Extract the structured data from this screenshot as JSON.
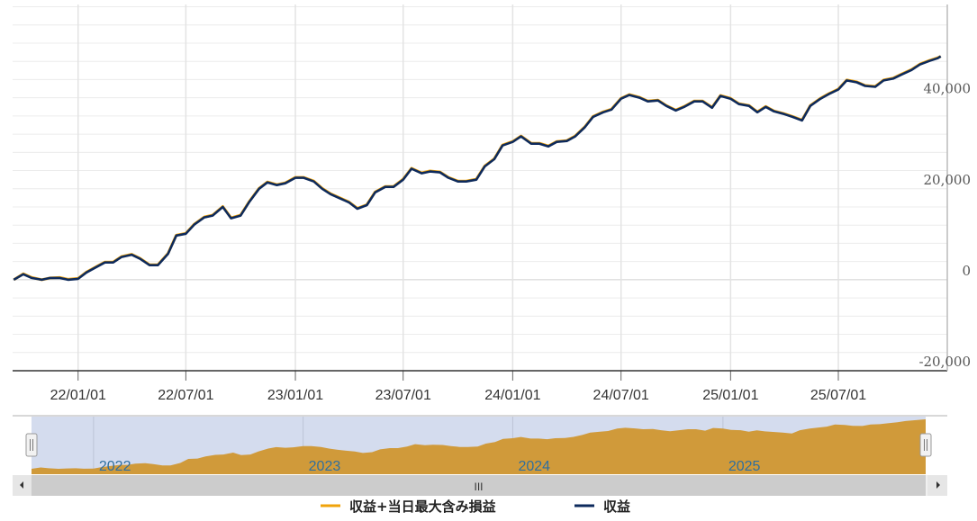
{
  "chart_data": {
    "type": "line",
    "title": "",
    "xlabel": "",
    "ylabel": "",
    "y_axis_position": "right",
    "ylim": [
      -20000,
      60500
    ],
    "y_ticks": [
      -20000,
      0,
      20000,
      40000
    ],
    "y_tick_labels": [
      "-20,000",
      "0",
      "20,000",
      "40,000"
    ],
    "x_ticks": [
      "2022-01-01",
      "2022-07-01",
      "2023-01-01",
      "2023-07-01",
      "2024-01-01",
      "2024-07-01",
      "2025-01-01",
      "2025-07-01"
    ],
    "x_tick_labels": [
      "22/01/01",
      "22/07/01",
      "23/01/01",
      "23/07/01",
      "24/01/01",
      "24/07/01",
      "25/01/01",
      "25/07/01"
    ],
    "xlim": [
      "2021-09-13",
      "2025-12-31"
    ],
    "grid": true,
    "legend_position": "bottom",
    "x": [
      "2021-09-15",
      "2021-10-01",
      "2021-10-15",
      "2021-11-01",
      "2021-11-15",
      "2021-12-01",
      "2021-12-15",
      "2022-01-01",
      "2022-01-15",
      "2022-02-01",
      "2022-02-15",
      "2022-03-01",
      "2022-03-15",
      "2022-04-01",
      "2022-04-15",
      "2022-05-01",
      "2022-05-15",
      "2022-06-01",
      "2022-06-15",
      "2022-07-01",
      "2022-07-15",
      "2022-08-01",
      "2022-08-15",
      "2022-09-01",
      "2022-09-15",
      "2022-10-01",
      "2022-10-15",
      "2022-11-01",
      "2022-11-15",
      "2022-12-01",
      "2022-12-15",
      "2023-01-01",
      "2023-01-15",
      "2023-02-01",
      "2023-02-15",
      "2023-03-01",
      "2023-03-15",
      "2023-04-01",
      "2023-04-15",
      "2023-05-01",
      "2023-05-15",
      "2023-06-01",
      "2023-06-15",
      "2023-07-01",
      "2023-07-15",
      "2023-08-01",
      "2023-08-15",
      "2023-09-01",
      "2023-09-15",
      "2023-10-01",
      "2023-10-15",
      "2023-11-01",
      "2023-11-15",
      "2023-12-01",
      "2023-12-15",
      "2024-01-01",
      "2024-01-15",
      "2024-02-01",
      "2024-02-15",
      "2024-03-01",
      "2024-03-15",
      "2024-04-01",
      "2024-04-15",
      "2024-05-01",
      "2024-05-15",
      "2024-06-01",
      "2024-06-15",
      "2024-07-01",
      "2024-07-15",
      "2024-08-01",
      "2024-08-15",
      "2024-09-01",
      "2024-09-15",
      "2024-10-01",
      "2024-10-15",
      "2024-11-01",
      "2024-11-15",
      "2024-12-01",
      "2024-12-15",
      "2025-01-01",
      "2025-01-15",
      "2025-02-01",
      "2025-02-15",
      "2025-03-01",
      "2025-03-15",
      "2025-04-01",
      "2025-04-15",
      "2025-05-01",
      "2025-05-15",
      "2025-06-01",
      "2025-06-15",
      "2025-07-01",
      "2025-07-15",
      "2025-08-01",
      "2025-08-15",
      "2025-09-01",
      "2025-09-15",
      "2025-10-01",
      "2025-10-15",
      "2025-11-01",
      "2025-11-15",
      "2025-12-01",
      "2025-12-15",
      "2025-12-20"
    ],
    "series": [
      {
        "name": "収益+当日最大含み損益",
        "color": "#f0a30a",
        "values": [
          0,
          1300,
          500,
          0,
          400,
          500,
          100,
          300,
          1700,
          2900,
          3900,
          3900,
          5100,
          5600,
          4700,
          3300,
          3300,
          5800,
          9800,
          10200,
          12200,
          13800,
          14200,
          16100,
          13600,
          14200,
          17100,
          20100,
          21500,
          20900,
          21300,
          22500,
          22500,
          21700,
          20100,
          18900,
          18100,
          17100,
          15700,
          16500,
          19300,
          20500,
          20500,
          22100,
          24500,
          23500,
          23900,
          23700,
          22500,
          21700,
          21700,
          22100,
          25000,
          26600,
          29600,
          30400,
          31600,
          30000,
          30000,
          29400,
          30400,
          30600,
          31600,
          33600,
          35900,
          36900,
          37500,
          39900,
          40700,
          40100,
          39300,
          39500,
          38300,
          37300,
          38100,
          39300,
          39300,
          37900,
          40500,
          39900,
          38700,
          38300,
          36900,
          38100,
          37100,
          36500,
          35900,
          35100,
          38300,
          39900,
          40900,
          41900,
          43900,
          43500,
          42700,
          42500,
          43900,
          44300,
          45200,
          46200,
          47400,
          48200,
          48800,
          49100
        ]
      },
      {
        "name": "収益",
        "color": "#0d2a5c",
        "values": [
          0,
          1200,
          400,
          0,
          400,
          400,
          0,
          200,
          1600,
          2800,
          3800,
          3800,
          5000,
          5500,
          4600,
          3200,
          3200,
          5700,
          9700,
          10100,
          12100,
          13700,
          14100,
          16000,
          13500,
          14100,
          17000,
          20000,
          21400,
          20800,
          21200,
          22400,
          22400,
          21600,
          20000,
          18800,
          18000,
          17000,
          15600,
          16400,
          19200,
          20400,
          20400,
          22000,
          24400,
          23400,
          23800,
          23600,
          22400,
          21600,
          21600,
          22000,
          24900,
          26500,
          29500,
          30300,
          31500,
          29900,
          29900,
          29300,
          30300,
          30500,
          31500,
          33500,
          35800,
          36800,
          37400,
          39800,
          40600,
          40000,
          39200,
          39400,
          38200,
          37200,
          38000,
          39200,
          39200,
          37800,
          40400,
          39800,
          38600,
          38200,
          36800,
          38000,
          37000,
          36400,
          35800,
          35000,
          38200,
          39800,
          40800,
          41800,
          43800,
          43400,
          42600,
          42400,
          43800,
          44200,
          45100,
          46100,
          47300,
          48100,
          48700,
          49100
        ]
      }
    ],
    "navigator": {
      "year_labels": [
        "2022",
        "2023",
        "2024",
        "2025"
      ],
      "year_ticks": [
        "2022-01-01",
        "2023-01-01",
        "2024-01-01",
        "2025-01-01"
      ],
      "fill_color": "#d09a3a",
      "mask_color": "#d4dcee",
      "scrollbar_grip": "III"
    },
    "legend": {
      "items": [
        {
          "label": "収益+当日最大含み損益",
          "color": "#f0a30a"
        },
        {
          "label": "収益",
          "color": "#0d2a5c"
        }
      ]
    }
  }
}
